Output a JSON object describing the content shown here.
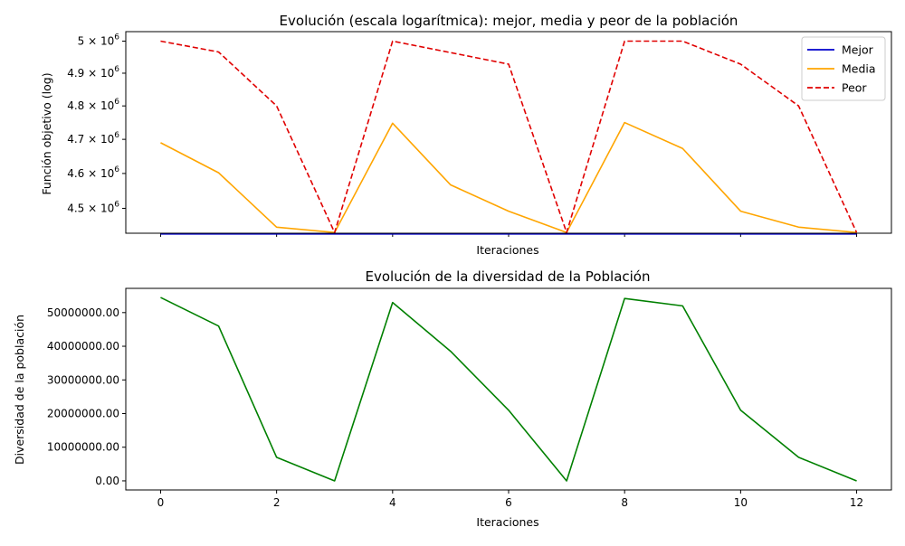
{
  "chart_data": [
    {
      "type": "line",
      "title": "Evolución (escala logarítmica): mejor, media y peor de la población",
      "xlabel": "Iteraciones",
      "ylabel": "Función objetivo (log)",
      "yscale": "log",
      "x": [
        0,
        1,
        2,
        3,
        4,
        5,
        6,
        7,
        8,
        9,
        10,
        11,
        12
      ],
      "xlim": [
        -0.6,
        12.6
      ],
      "ylim": [
        4430000,
        5030000
      ],
      "xticks": [
        0,
        2,
        4,
        6,
        8,
        10,
        12
      ],
      "xtick_labels_visible": false,
      "yticks": [
        {
          "value": 4500000,
          "mantissa": "4.5",
          "base": "10",
          "exp": "6"
        },
        {
          "value": 4600000,
          "mantissa": "4.6",
          "base": "10",
          "exp": "6"
        },
        {
          "value": 4700000,
          "mantissa": "4.7",
          "base": "10",
          "exp": "6"
        },
        {
          "value": 4800000,
          "mantissa": "4.8",
          "base": "10",
          "exp": "6"
        },
        {
          "value": 4900000,
          "mantissa": "4.9",
          "base": "10",
          "exp": "6"
        },
        {
          "value": 5000000,
          "mantissa": "5",
          "base": "10",
          "exp": "6"
        }
      ],
      "tick_times": "×",
      "grid": false,
      "legend": "top-right",
      "series": [
        {
          "name": "Mejor",
          "color": "#0000cc",
          "dash": "solid",
          "values": [
            4428000,
            4428000,
            4428000,
            4428000,
            4428000,
            4428000,
            4428000,
            4428000,
            4428000,
            4428000,
            4428000,
            4428000,
            4428000
          ]
        },
        {
          "name": "Media",
          "color": "#ffa500",
          "dash": "solid",
          "values": [
            4690000,
            4602000,
            4447000,
            4432000,
            4748000,
            4567000,
            4492000,
            4432000,
            4750000,
            4673000,
            4492000,
            4447000,
            4432000
          ]
        },
        {
          "name": "Peor",
          "color": "#e00000",
          "dash": "dashed",
          "values": [
            5000000,
            4966000,
            4800000,
            4432000,
            5000000,
            4964000,
            4928000,
            4432000,
            5000000,
            5000000,
            4928000,
            4800000,
            4432000
          ]
        }
      ]
    },
    {
      "type": "line",
      "title": "Evolución de la diversidad de la Población",
      "xlabel": "Iteraciones",
      "ylabel": "Diversidad de la población",
      "x": [
        0,
        1,
        2,
        3,
        4,
        5,
        6,
        7,
        8,
        9,
        10,
        11,
        12
      ],
      "xlim": [
        -0.6,
        12.6
      ],
      "ylim": [
        -2700000,
        57200000
      ],
      "xticks": [
        0,
        2,
        4,
        6,
        8,
        10,
        12
      ],
      "xtick_labels": [
        "0",
        "2",
        "4",
        "6",
        "8",
        "10",
        "12"
      ],
      "yticks": [
        0,
        10000000,
        20000000,
        30000000,
        40000000,
        50000000
      ],
      "ytick_labels": [
        "0.00",
        "10000000.00",
        "20000000.00",
        "30000000.00",
        "40000000.00",
        "50000000.00"
      ],
      "grid": false,
      "series": [
        {
          "color": "#008000",
          "dash": "solid",
          "values": [
            54500000,
            46000000,
            7000000,
            0,
            53000000,
            38500000,
            21000000,
            0,
            54200000,
            52000000,
            21000000,
            7000000,
            0
          ]
        }
      ]
    }
  ]
}
